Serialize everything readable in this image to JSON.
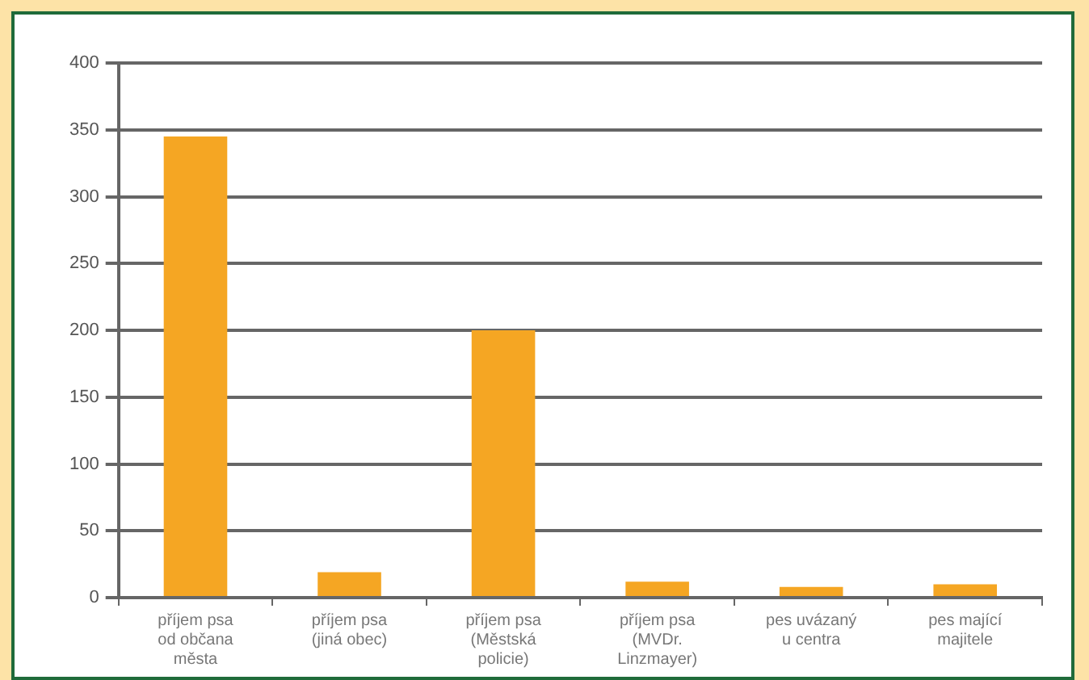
{
  "chart_data": {
    "type": "bar",
    "categories": [
      "příjem psa od občana města",
      "příjem psa (jiná obec)",
      "příjem psa (Městská policie)",
      "příjem psa (MVDr. Linzmayer)",
      "pes uvázaný u centra",
      "pes mající majitele"
    ],
    "values": [
      345,
      19,
      200,
      12,
      8,
      10
    ],
    "color": "#f5a623",
    "ylim": [
      0,
      400
    ],
    "yticks": [
      0,
      50,
      100,
      150,
      200,
      250,
      300,
      350,
      400
    ],
    "grid": "y"
  }
}
